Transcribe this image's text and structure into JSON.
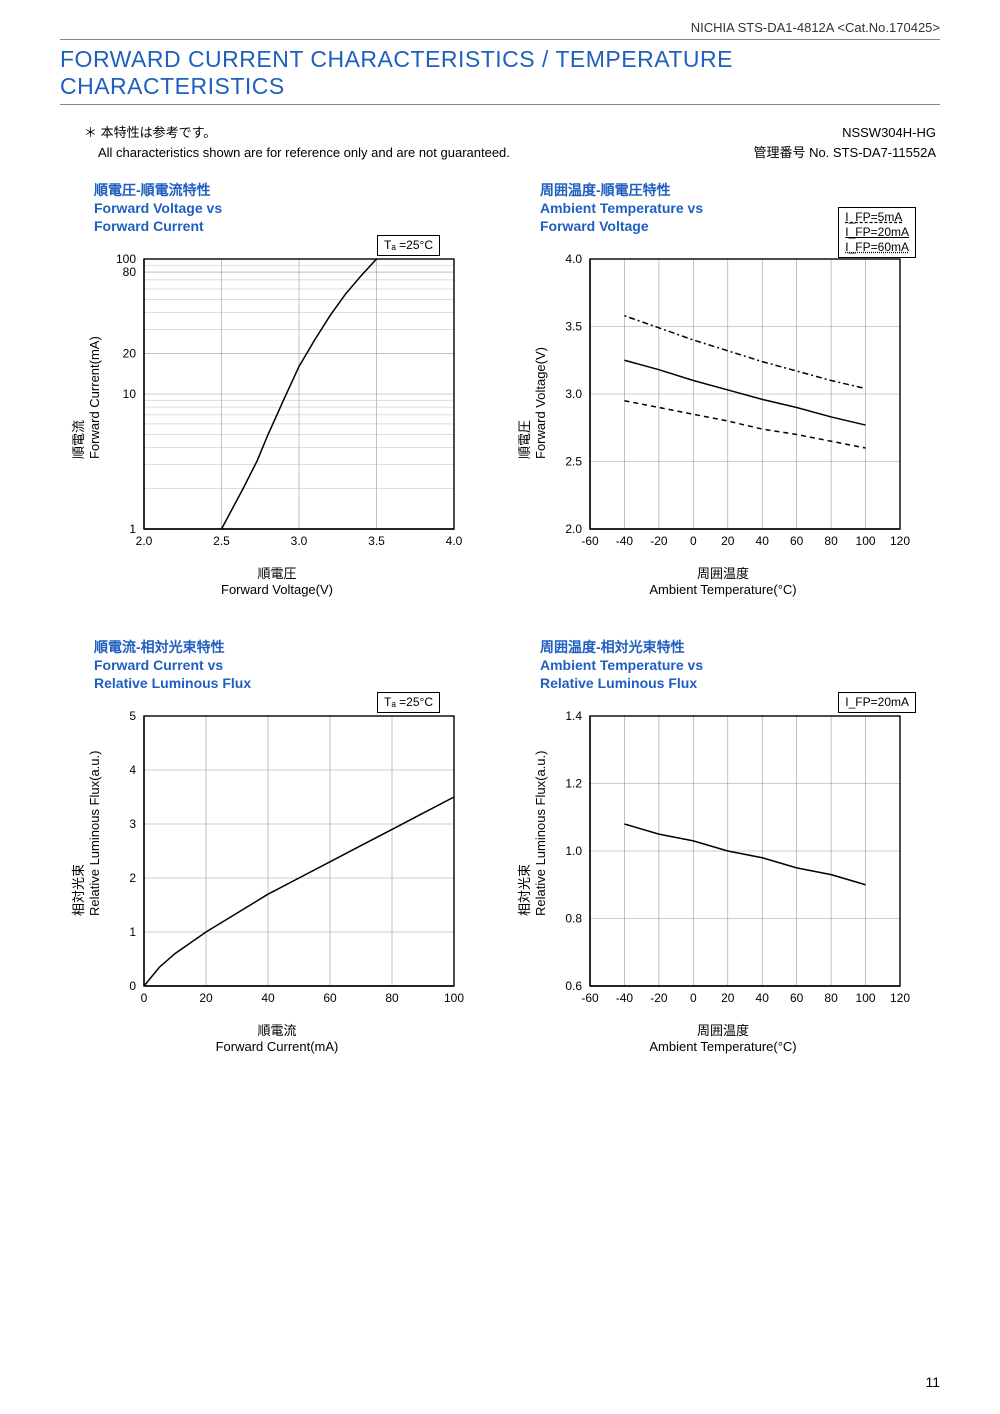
{
  "header": {
    "company_doc": "NICHIA STS-DA1-4812A <Cat.No.170425>",
    "title": "FORWARD CURRENT CHARACTERISTICS / TEMPERATURE CHARACTERISTICS"
  },
  "notes": {
    "star_jp": "＊ 本特性は参考です。",
    "en": "All characteristics shown are for reference only and are not guaranteed.",
    "part_no": "NSSW304H-HG",
    "mgmt_no": "管理番号 No. STS-DA7-11552A"
  },
  "chart1": {
    "type": "line",
    "title_jp": "順電圧-順電流特性",
    "title_en1": "Forward Voltage vs",
    "title_en2": "Forward Current",
    "condition": "Tₐ =25°C",
    "xlabel_jp": "順電圧",
    "xlabel_en": "Forward Voltage(V)",
    "ylabel_jp": "順電流",
    "ylabel_en": "Forward Current(mA)",
    "xlim": [
      2.0,
      4.0
    ],
    "xtick_step": 0.5,
    "ylim": [
      1,
      100
    ],
    "yscale": "log",
    "yticks": [
      1,
      10,
      20,
      80,
      100
    ],
    "yticks_labels": [
      "1",
      "10",
      "20",
      "80",
      "100"
    ],
    "y_minor": [
      2,
      3,
      4,
      5,
      6,
      7,
      8,
      9,
      30,
      40,
      50,
      60,
      70,
      90
    ],
    "series": [
      {
        "name": "IV",
        "style": "solid",
        "points": [
          [
            2.5,
            1
          ],
          [
            2.64,
            2
          ],
          [
            2.73,
            3.2
          ],
          [
            2.8,
            5
          ],
          [
            2.9,
            9
          ],
          [
            3.0,
            16
          ],
          [
            3.1,
            25
          ],
          [
            3.2,
            38
          ],
          [
            3.3,
            55
          ],
          [
            3.4,
            75
          ],
          [
            3.5,
            100
          ]
        ]
      }
    ],
    "grid_color": "#999",
    "line_color": "#000"
  },
  "chart2": {
    "type": "line",
    "title_jp": "周囲温度-順電圧特性",
    "title_en1": "Ambient Temperature vs",
    "title_en2": "Forward Voltage",
    "legend": [
      "I_FP=5mA",
      "I_FP=20mA",
      "I_FP=60mA"
    ],
    "xlabel_jp": "周囲温度",
    "xlabel_en": "Ambient Temperature(°C)",
    "ylabel_jp": "順電圧",
    "ylabel_en": "Forward Voltage(V)",
    "xlim": [
      -60,
      120
    ],
    "xtick_step": 20,
    "ylim": [
      2.0,
      4.0
    ],
    "ytick_step": 0.5,
    "series": [
      {
        "name": "5mA",
        "style": "dash2",
        "points": [
          [
            -40,
            2.95
          ],
          [
            -20,
            2.9
          ],
          [
            0,
            2.85
          ],
          [
            20,
            2.8
          ],
          [
            40,
            2.74
          ],
          [
            60,
            2.7
          ],
          [
            80,
            2.65
          ],
          [
            100,
            2.6
          ]
        ]
      },
      {
        "name": "20mA",
        "style": "solid",
        "points": [
          [
            -40,
            3.25
          ],
          [
            -20,
            3.18
          ],
          [
            0,
            3.1
          ],
          [
            20,
            3.03
          ],
          [
            40,
            2.96
          ],
          [
            60,
            2.9
          ],
          [
            80,
            2.83
          ],
          [
            100,
            2.77
          ]
        ]
      },
      {
        "name": "60mA",
        "style": "dash3",
        "points": [
          [
            -40,
            3.58
          ],
          [
            -20,
            3.49
          ],
          [
            0,
            3.4
          ],
          [
            20,
            3.32
          ],
          [
            40,
            3.24
          ],
          [
            60,
            3.17
          ],
          [
            80,
            3.1
          ],
          [
            100,
            3.04
          ]
        ]
      }
    ]
  },
  "chart3": {
    "type": "line",
    "title_jp": "順電流-相対光束特性",
    "title_en1": "Forward Current vs",
    "title_en2": "Relative Luminous Flux",
    "condition": "Tₐ =25°C",
    "xlabel_jp": "順電流",
    "xlabel_en": "Forward Current(mA)",
    "ylabel_jp": "相対光束",
    "ylabel_en": "Relative Luminous Flux(a.u.)",
    "xlim": [
      0,
      100
    ],
    "xtick_step": 20,
    "ylim": [
      0,
      5
    ],
    "ytick_step": 1,
    "series": [
      {
        "name": "flux",
        "style": "solid",
        "points": [
          [
            0,
            0
          ],
          [
            5,
            0.35
          ],
          [
            10,
            0.6
          ],
          [
            20,
            1.0
          ],
          [
            30,
            1.35
          ],
          [
            40,
            1.7
          ],
          [
            50,
            2.0
          ],
          [
            60,
            2.3
          ],
          [
            70,
            2.6
          ],
          [
            80,
            2.9
          ],
          [
            90,
            3.2
          ],
          [
            100,
            3.5
          ]
        ]
      }
    ]
  },
  "chart4": {
    "type": "line",
    "title_jp": "周囲温度-相対光束特性",
    "title_en1": "Ambient Temperature vs",
    "title_en2": "Relative Luminous Flux",
    "condition": "I_FP=20mA",
    "xlabel_jp": "周囲温度",
    "xlabel_en": "Ambient Temperature(°C)",
    "ylabel_jp": "相対光束",
    "ylabel_en": "Relative Luminous Flux(a.u.)",
    "xlim": [
      -60,
      120
    ],
    "xtick_step": 20,
    "ylim": [
      0.6,
      1.4
    ],
    "ytick_step": 0.2,
    "series": [
      {
        "name": "flux",
        "style": "solid",
        "points": [
          [
            -40,
            1.08
          ],
          [
            -20,
            1.05
          ],
          [
            0,
            1.03
          ],
          [
            20,
            1.0
          ],
          [
            40,
            0.98
          ],
          [
            60,
            0.95
          ],
          [
            80,
            0.93
          ],
          [
            100,
            0.9
          ]
        ]
      }
    ]
  },
  "page_number": "11"
}
